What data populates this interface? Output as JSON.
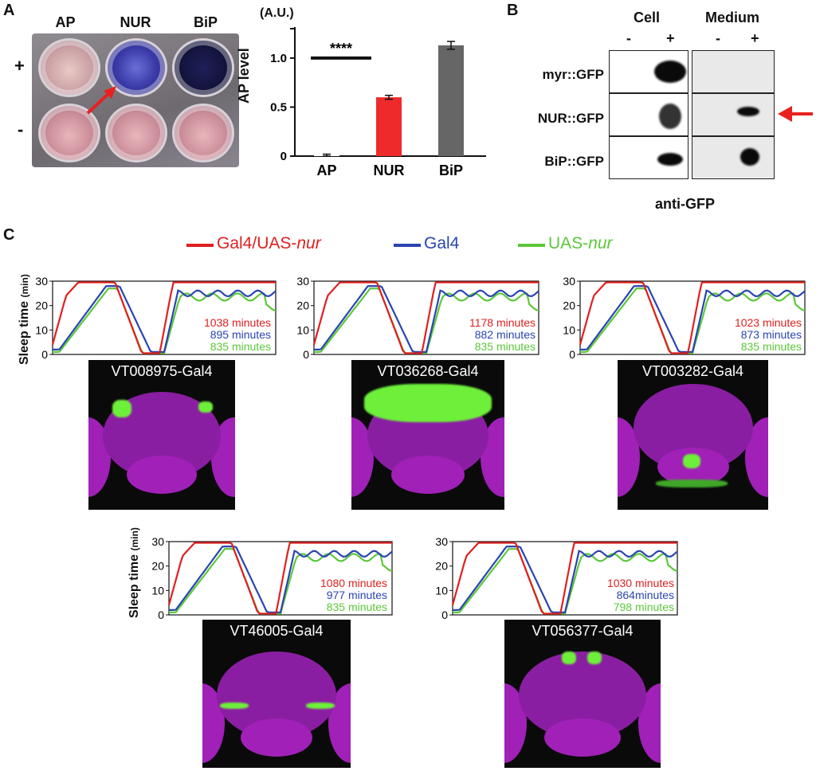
{
  "panel_a": {
    "letter": "A",
    "plate_labels": [
      "AP",
      "NUR",
      "BiP"
    ],
    "row_labels": [
      "+",
      "-"
    ],
    "chart_data": {
      "type": "bar",
      "categories": [
        "AP",
        "NUR",
        "BiP"
      ],
      "values": [
        0.01,
        0.6,
        1.13
      ],
      "errors": [
        0.01,
        0.02,
        0.04
      ],
      "colors": [
        "#ffffff",
        "#ee2a2a",
        "#666666"
      ],
      "ylabel": "AP level",
      "yunit": "(A.U.)",
      "yticks": [
        "0",
        "0.5",
        "1.0"
      ],
      "ylim": [
        0,
        1.3
      ],
      "significance": "****",
      "grid": false
    }
  },
  "panel_b": {
    "letter": "B",
    "groups": [
      "Cell",
      "Medium"
    ],
    "lanes": [
      "-",
      "+",
      "-",
      "+"
    ],
    "rows": [
      "myr::GFP",
      "NUR::GFP",
      "BiP::GFP"
    ],
    "caption": "anti-GFP"
  },
  "panel_c": {
    "letter": "C",
    "legend": [
      {
        "label": "Gal4/UAS-",
        "italic": "nur",
        "color": "#e02020"
      },
      {
        "label": "Gal4",
        "italic": "",
        "color": "#2a45b0"
      },
      {
        "label": "UAS-",
        "italic": "nur",
        "color": "#5cc83a"
      }
    ],
    "ylabel": "Sleep time",
    "yunit": "(min)",
    "yticks": [
      "0",
      "10",
      "20",
      "30"
    ],
    "plots": [
      {
        "line": "VT008975-Gal4",
        "minutes": [
          "1038 minutes",
          "895 minutes",
          "835 minutes"
        ]
      },
      {
        "line": "VT036268-Gal4",
        "minutes": [
          "1178 minutes",
          "882 minutes",
          "835 minutes"
        ]
      },
      {
        "line": "VT003282-Gal4",
        "minutes": [
          "1023 minutes",
          "873 minutes",
          "835 minutes"
        ]
      },
      {
        "line": "VT46005-Gal4",
        "minutes": [
          "1080 minutes",
          "977 minutes",
          "835 minutes"
        ]
      },
      {
        "line": "VT056377-Gal4",
        "minutes": [
          "1030 minutes",
          "864minutes",
          "798 minutes"
        ]
      }
    ]
  }
}
